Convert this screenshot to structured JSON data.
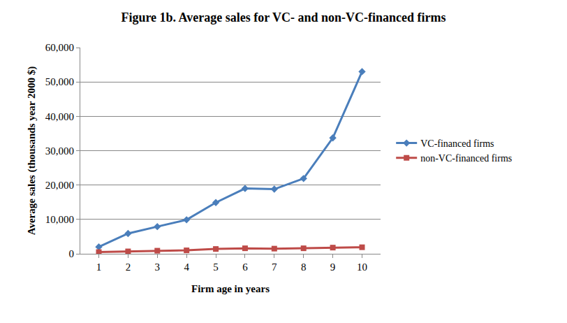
{
  "chart_data": {
    "type": "line",
    "title": "Figure 1b. Average sales for VC- and non-VC-financed firms",
    "x_label": "Firm age in years",
    "y_label": "Average sales (thousands year 2000 $)",
    "categories": [
      "1",
      "2",
      "3",
      "4",
      "5",
      "6",
      "7",
      "8",
      "9",
      "10"
    ],
    "series": [
      {
        "name": "VC-financed firms",
        "color": "#4a7ebb",
        "marker": "diamond",
        "values": [
          2000,
          5900,
          7900,
          9900,
          14900,
          19000,
          18800,
          21900,
          33700,
          53000
        ]
      },
      {
        "name": "non-VC-financed firms",
        "color": "#be4b48",
        "marker": "square",
        "values": [
          500,
          700,
          900,
          1000,
          1400,
          1600,
          1500,
          1600,
          1800,
          1900
        ]
      }
    ],
    "ylim": [
      0,
      60000
    ],
    "yticks": [
      0,
      {
        "value": 10000,
        "label": "10,000"
      },
      {
        "value": 20000,
        "label": "20,000"
      },
      {
        "value": 30000,
        "label": "30,000"
      },
      {
        "value": 40000,
        "label": "40,000"
      },
      {
        "value": 50000,
        "label": "50,000"
      },
      {
        "value": 60000,
        "label": "60,000"
      }
    ],
    "grid": true,
    "legend": "right"
  }
}
